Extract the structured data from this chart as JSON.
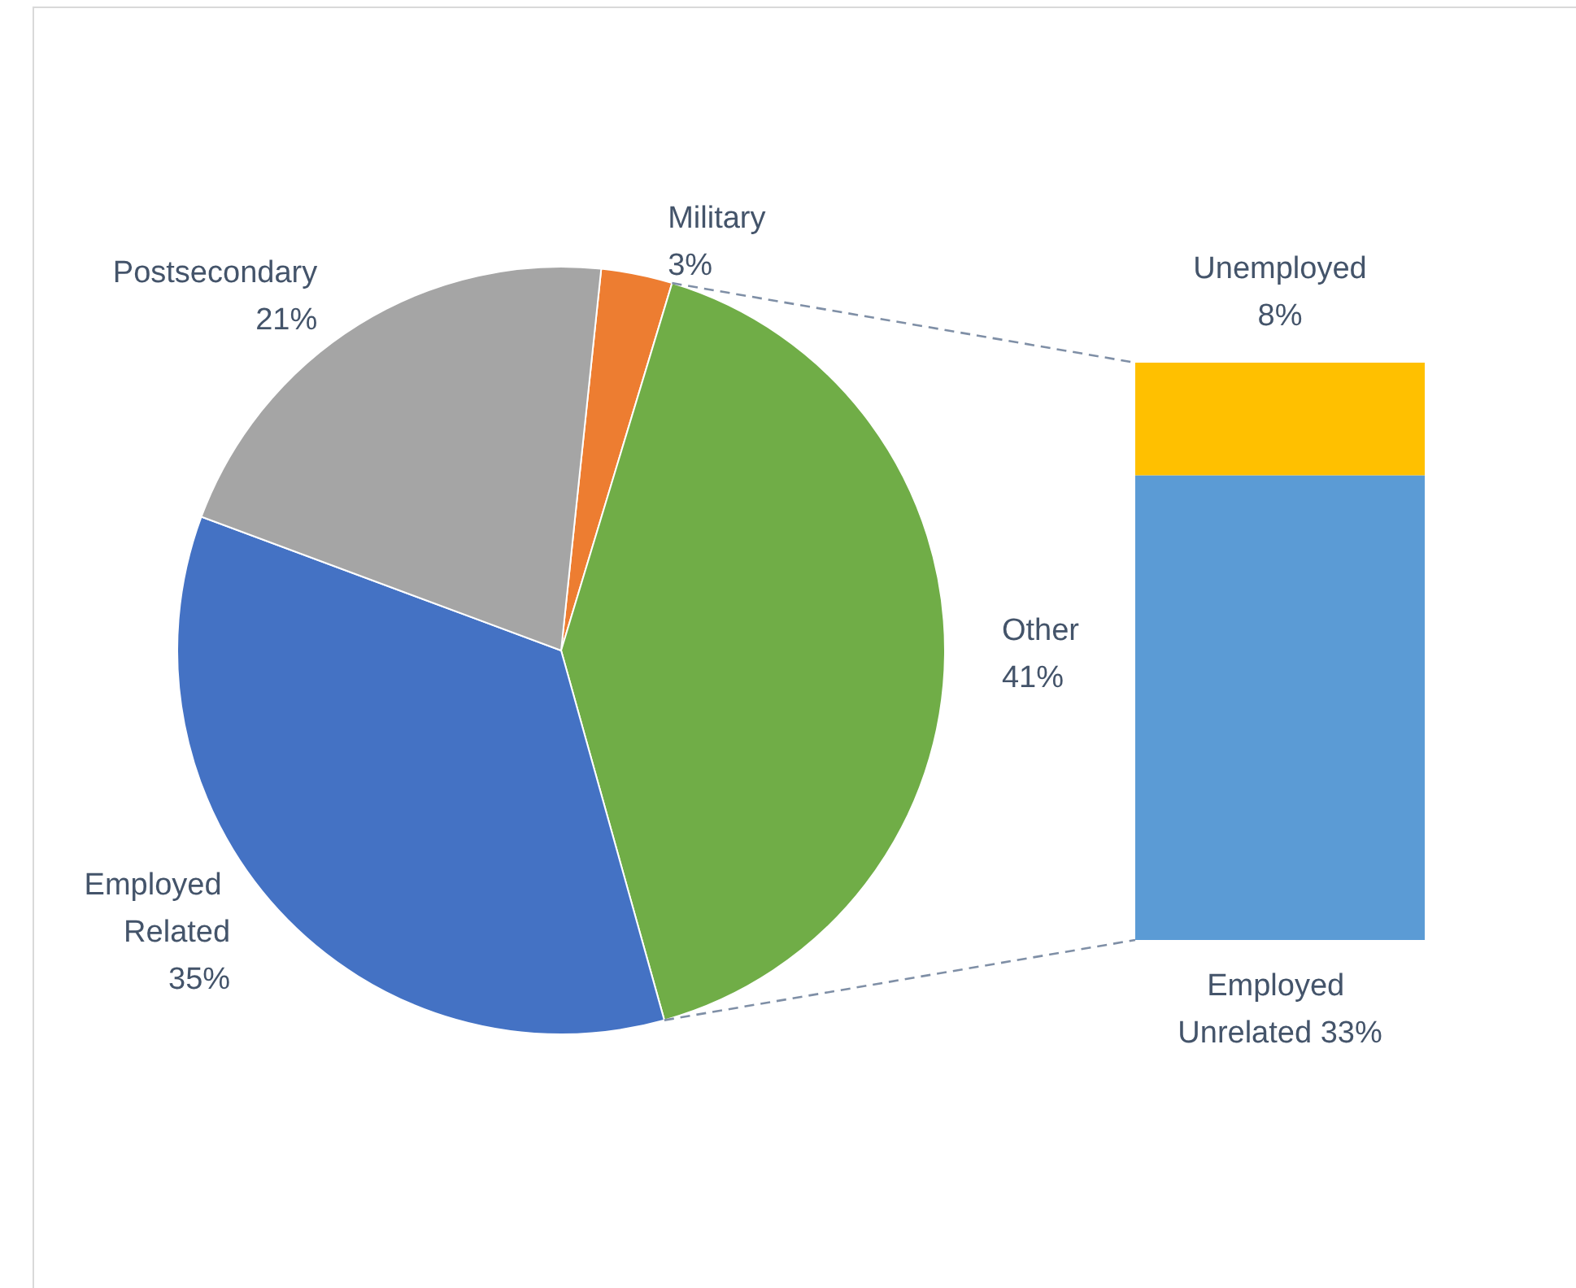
{
  "chart_data": [
    {
      "type": "pie",
      "categories": [
        "Military",
        "Other",
        "Employed Related",
        "Postsecondary"
      ],
      "values": [
        3,
        41,
        35,
        21
      ],
      "colors": [
        "#ed7d31",
        "#70ad47",
        "#4472c4",
        "#a5a5a5"
      ],
      "value_labels": [
        "3%",
        "41%",
        "35%",
        "21%"
      ],
      "legend": false
    },
    {
      "type": "bar",
      "stacked": true,
      "categories": [
        null
      ],
      "series": [
        {
          "name": "Employed Unrelated",
          "color": "#5b9bd5",
          "values": [
            33
          ],
          "value_labels": [
            "33%"
          ]
        },
        {
          "name": "Unemployed",
          "color": "#ffc000",
          "values": [
            8
          ],
          "value_labels": [
            "8%"
          ]
        }
      ],
      "legend": false
    }
  ]
}
